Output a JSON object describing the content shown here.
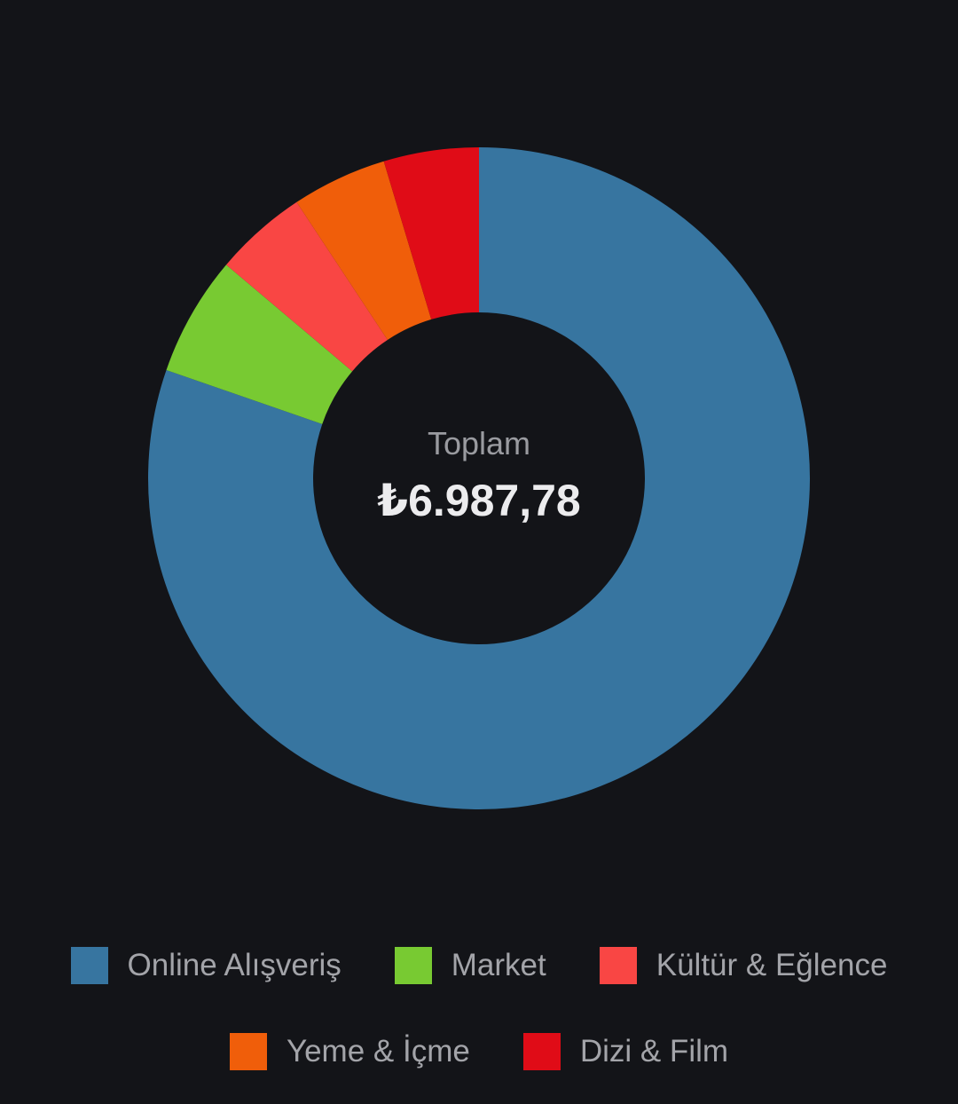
{
  "chart_data": {
    "type": "pie",
    "donut": true,
    "center_label": "Toplam",
    "center_value": "₺6.987,78",
    "categories": [
      "Online Alışveriş",
      "Market",
      "Kültür & Eğlence",
      "Yeme & İçme",
      "Dizi & Film"
    ],
    "values": [
      79.5,
      5.8,
      4.5,
      4.6,
      4.6
    ],
    "value_unit": "percent of total (estimated)",
    "colors": [
      "#3775a0",
      "#78ca32",
      "#f94644",
      "#f05e0a",
      "#e00c17"
    ],
    "legend_position": "bottom"
  }
}
